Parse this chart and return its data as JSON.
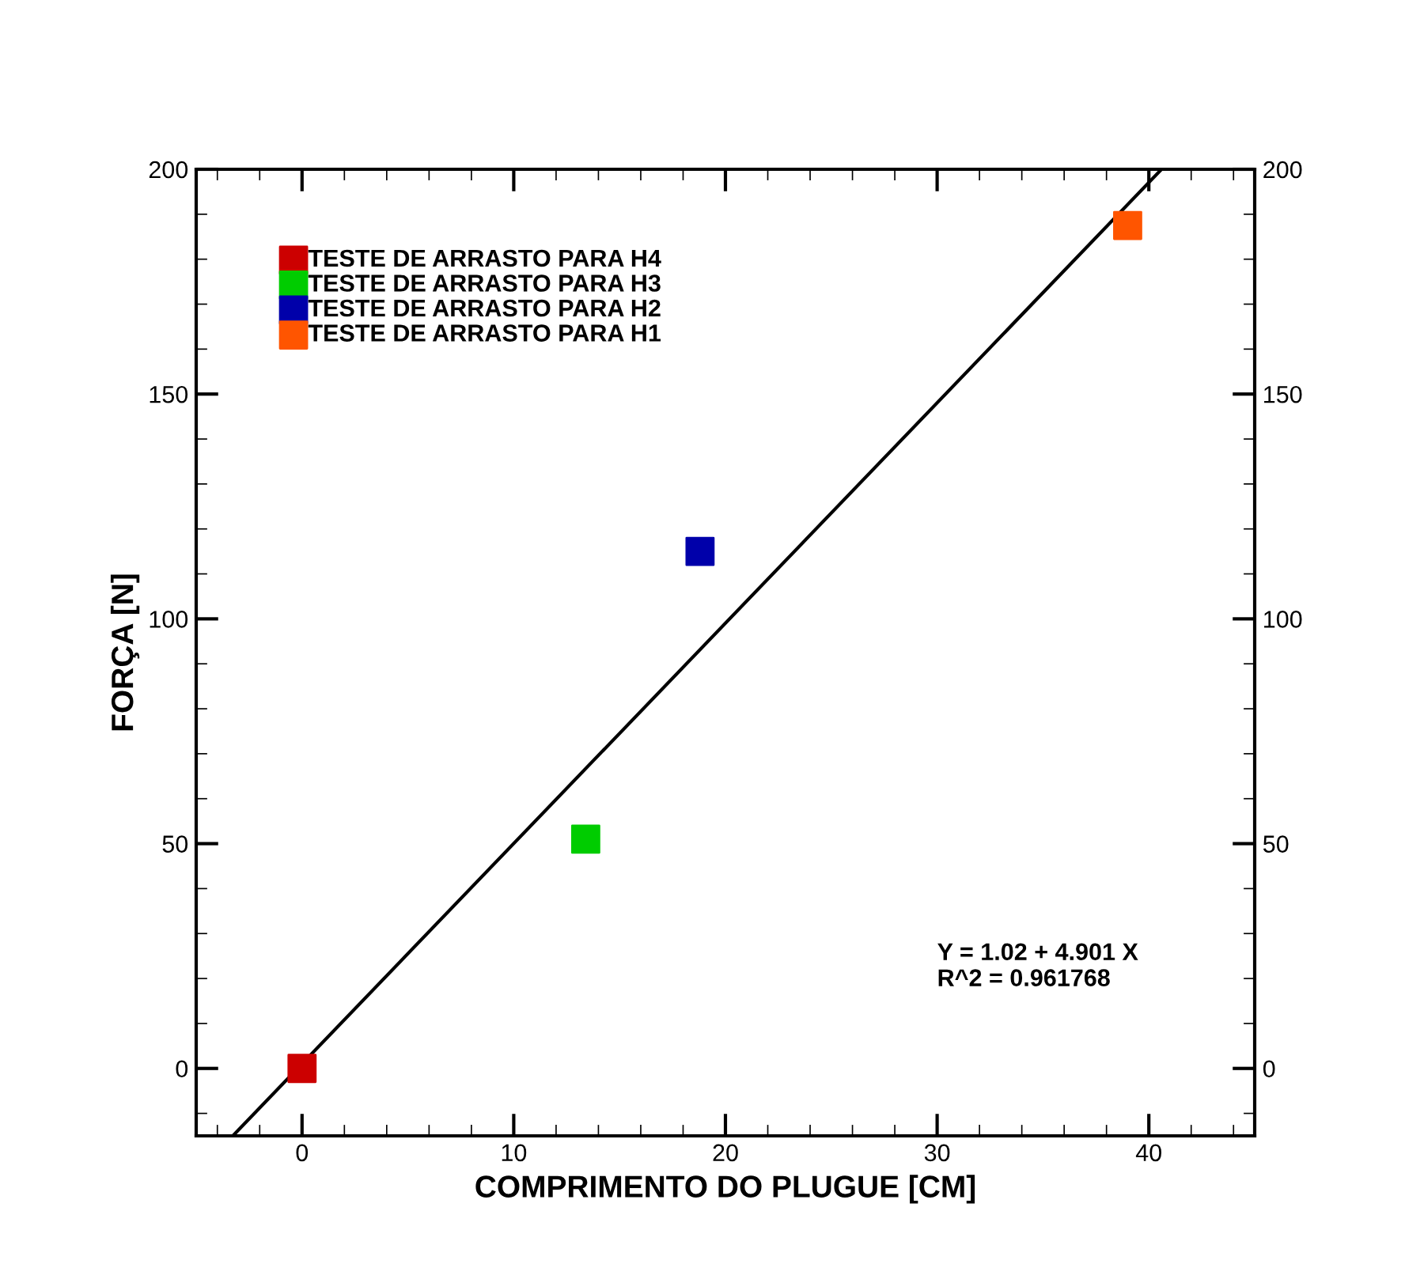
{
  "chart_data": {
    "type": "scatter",
    "xlabel": "COMPRIMENTO DO PLUGUE [CM]",
    "ylabel": "FORÇA [N]",
    "xlim": [
      -5,
      45
    ],
    "xticks": [
      0,
      10,
      20,
      30,
      40
    ],
    "ylim": [
      -15,
      200
    ],
    "yticks": [
      0,
      50,
      100,
      150,
      200
    ],
    "y2lim": [
      -15,
      200
    ],
    "y2ticks": [
      0,
      50,
      100,
      150,
      200
    ],
    "marker": "square",
    "legend": "top left",
    "grid": false,
    "series": [
      {
        "name": "TESTE DE ARRASTO PARA H4",
        "color": "#cc0000",
        "x": [
          0
        ],
        "values": [
          0
        ]
      },
      {
        "name": "TESTE DE ARRASTO PARA H3",
        "color": "#00cc00",
        "x": [
          13.4
        ],
        "values": [
          51
        ]
      },
      {
        "name": "TESTE DE ARRASTO PARA H2",
        "color": "#0000aa",
        "x": [
          18.8
        ],
        "values": [
          115
        ]
      },
      {
        "name": "TESTE DE ARRASTO PARA H1",
        "color": "#ff5500",
        "x": [
          39.0
        ],
        "values": [
          187.5
        ]
      },
      {
        "type": "line",
        "color": "#000000",
        "x": [
          -3.27,
          40.6
        ],
        "values": [
          -15,
          200.0
        ],
        "marker": "none",
        "line_style": "solid"
      }
    ],
    "annotations": [
      "Y = 1.02 + 4.901 X\nR^2 = 0.961768"
    ]
  }
}
